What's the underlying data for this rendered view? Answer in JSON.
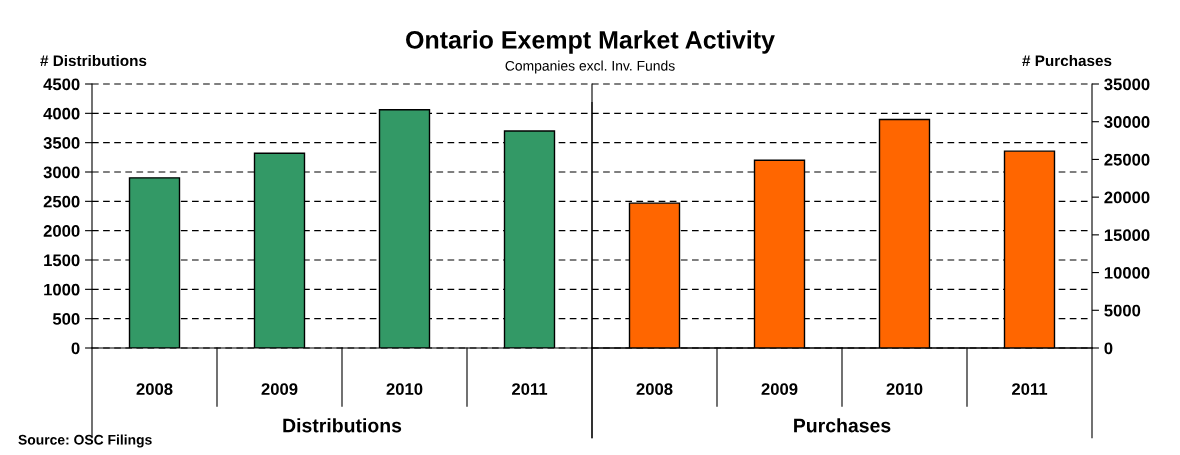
{
  "chart_data": [
    {
      "type": "bar",
      "title": "Ontario Exempt Market Activity",
      "subtitle": "Companies excl. Inv. Funds",
      "ylabel": "# Distributions",
      "xlabel": "Distributions",
      "categories": [
        "2008",
        "2009",
        "2010",
        "2011"
      ],
      "series": [
        {
          "color": "#339966",
          "values": [
            2900,
            3320,
            4060,
            3700
          ]
        }
      ],
      "ylim": [
        0,
        4500
      ],
      "yticks": [
        0,
        500,
        1000,
        1500,
        2000,
        2500,
        3000,
        3500,
        4000,
        4500
      ],
      "grid": "y",
      "legend": false,
      "annotations": [
        "Source: OSC Filings"
      ]
    },
    {
      "type": "bar",
      "y2label": "# Purchases",
      "xlabel": "Purchases",
      "categories": [
        "2008",
        "2009",
        "2010",
        "2011"
      ],
      "series": [
        {
          "color": "#ff6600",
          "axis": "y2",
          "values": [
            19200,
            24900,
            30300,
            26100
          ]
        }
      ],
      "y2lim": [
        0,
        35000
      ],
      "y2ticks": [
        0,
        5000,
        10000,
        15000,
        20000,
        25000,
        30000,
        35000
      ],
      "legend": false
    }
  ]
}
